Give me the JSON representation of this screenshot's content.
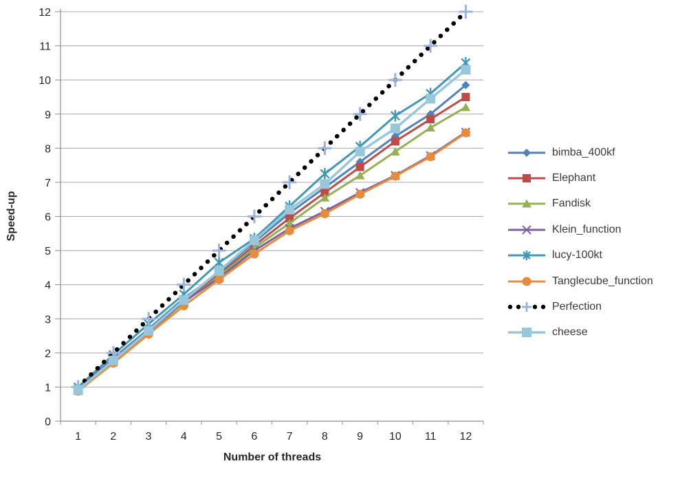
{
  "chart_data": {
    "type": "line",
    "title": "",
    "xlabel": "Number of threads",
    "ylabel": "Speed-up",
    "x": [
      1,
      2,
      3,
      4,
      5,
      6,
      7,
      8,
      9,
      10,
      11,
      12
    ],
    "ylim": [
      0,
      12
    ],
    "ytick_step": 1,
    "grid": "horizontal",
    "legend_position": "right",
    "colors": {
      "grid": "#A6A6A6",
      "axis": "#8C8C8C",
      "text": "#262626",
      "perfection_plus": "#9DB3DC"
    },
    "series": [
      {
        "name": "bimba_400kf",
        "color": "#4F81BD",
        "marker": "diamond",
        "marker_size": 12,
        "line": "solid",
        "line_width": 3,
        "values": [
          0.95,
          1.85,
          2.7,
          3.6,
          4.35,
          5.25,
          6.1,
          6.85,
          7.6,
          8.35,
          9.0,
          9.85
        ]
      },
      {
        "name": "Elephant",
        "color": "#BE4B48",
        "marker": "square",
        "marker_size": 12,
        "line": "solid",
        "line_width": 3,
        "values": [
          0.93,
          1.8,
          2.65,
          3.52,
          4.28,
          5.15,
          5.95,
          6.7,
          7.45,
          8.2,
          8.85,
          9.5
        ]
      },
      {
        "name": "Fandisk",
        "color": "#94B052",
        "marker": "triangle",
        "marker_size": 13,
        "line": "solid",
        "line_width": 3,
        "values": [
          0.88,
          1.72,
          2.6,
          3.48,
          4.25,
          5.08,
          5.8,
          6.55,
          7.2,
          7.9,
          8.6,
          9.2
        ]
      },
      {
        "name": "Klein_function",
        "color": "#7D60A0",
        "marker": "x",
        "marker_size": 12,
        "line": "solid",
        "line_width": 3,
        "values": [
          0.94,
          1.8,
          2.63,
          3.5,
          4.2,
          5.0,
          5.65,
          6.15,
          6.7,
          7.2,
          7.78,
          8.47
        ]
      },
      {
        "name": "lucy-100kt",
        "color": "#3E99B8",
        "marker": "star",
        "marker_size": 17,
        "line": "solid",
        "line_width": 3,
        "values": [
          1.0,
          1.95,
          2.85,
          3.72,
          4.65,
          5.35,
          6.3,
          7.25,
          8.05,
          8.95,
          9.6,
          10.5
        ]
      },
      {
        "name": "Tanglecube_function",
        "color": "#E68C3C",
        "marker": "circle",
        "marker_size": 13,
        "line": "solid",
        "line_width": 3,
        "values": [
          0.88,
          1.7,
          2.55,
          3.38,
          4.15,
          4.9,
          5.58,
          6.08,
          6.65,
          7.18,
          7.75,
          8.45
        ]
      },
      {
        "name": "Perfection",
        "color": "#000000",
        "marker": "plus",
        "marker_color": "#9DB3DC",
        "marker_size": 20,
        "line": "dotted",
        "line_width": 6.5,
        "values": [
          1,
          2,
          3,
          4,
          5,
          6,
          7,
          8,
          9,
          10,
          11,
          12
        ]
      },
      {
        "name": "cheese",
        "color": "#98C6DA",
        "marker": "square",
        "marker_size": 14,
        "line": "solid",
        "line_width": 3.5,
        "values": [
          0.92,
          1.78,
          2.65,
          3.55,
          4.4,
          5.3,
          6.2,
          6.95,
          7.9,
          8.58,
          9.45,
          10.3
        ]
      }
    ]
  }
}
